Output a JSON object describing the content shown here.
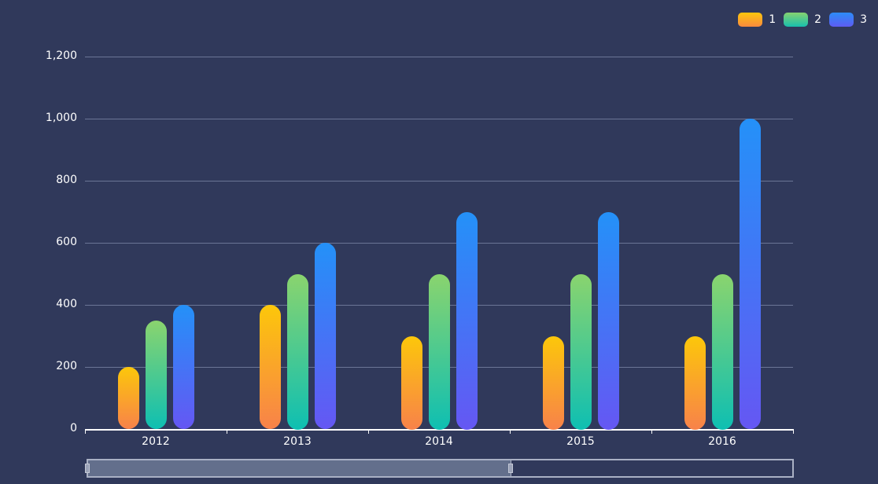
{
  "legend": {
    "items": [
      {
        "label": "1",
        "gradient": [
          "#fcc70a",
          "#f8824a"
        ]
      },
      {
        "label": "2",
        "gradient": [
          "#8ad46e",
          "#0ebfb2"
        ]
      },
      {
        "label": "3",
        "gradient": [
          "#2491f8",
          "#6557f3"
        ]
      }
    ]
  },
  "yaxis": {
    "ticks": [
      "1,200",
      "1,000",
      "800",
      "600",
      "400",
      "200",
      "0"
    ]
  },
  "xaxis": {
    "ticks": [
      "2012",
      "2013",
      "2014",
      "2015",
      "2016"
    ]
  },
  "datazoom": {
    "start_percent": 0,
    "end_percent": 60
  },
  "colors": {
    "background": "#30395b",
    "gridline": "#6b7596",
    "axis": "#ffffff"
  },
  "chart_data": {
    "type": "bar",
    "title": "",
    "xlabel": "",
    "ylabel": "",
    "categories": [
      "2012",
      "2013",
      "2014",
      "2015",
      "2016"
    ],
    "series": [
      {
        "name": "1",
        "values": [
          200,
          400,
          300,
          300,
          300
        ]
      },
      {
        "name": "2",
        "values": [
          350,
          500,
          500,
          500,
          500
        ]
      },
      {
        "name": "3",
        "values": [
          400,
          600,
          700,
          700,
          1000
        ]
      }
    ],
    "ylim": [
      0,
      1200
    ],
    "yticks": [
      0,
      200,
      400,
      600,
      800,
      1000,
      1200
    ],
    "grid": true,
    "legend_position": "top-right",
    "bar_style": "rounded, vertical gradient",
    "datazoom": {
      "start": 0,
      "end": 60
    }
  }
}
